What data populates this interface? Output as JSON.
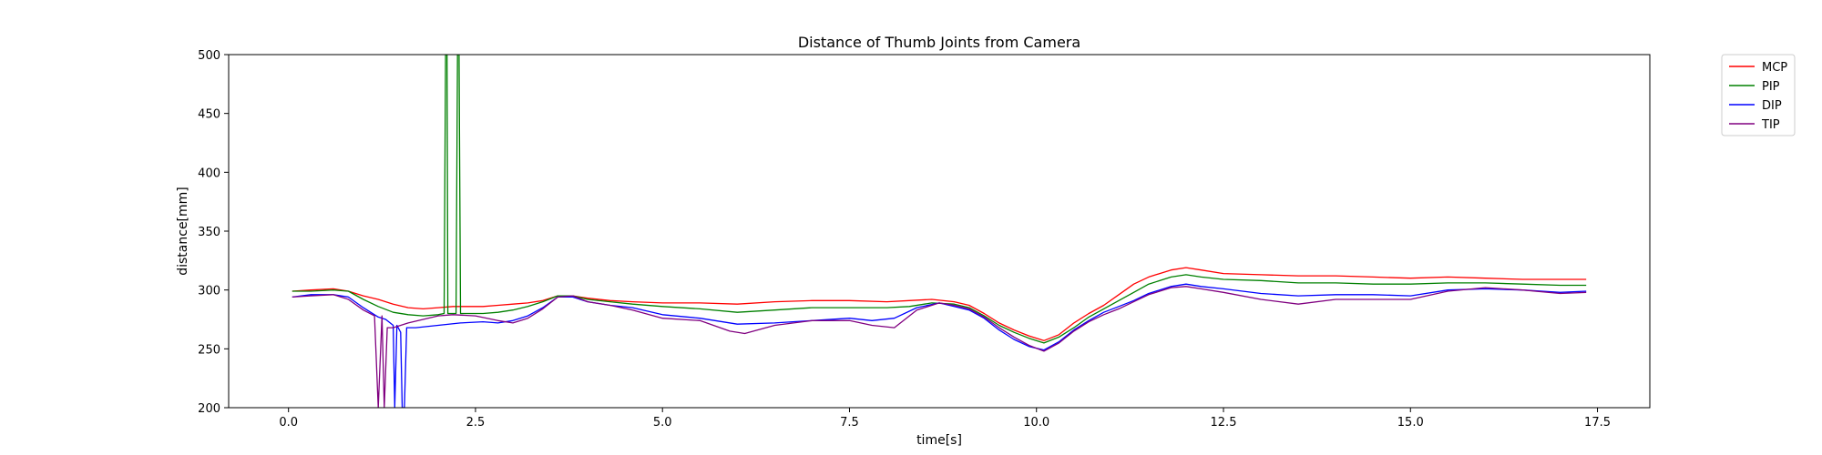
{
  "chart_data": {
    "type": "line",
    "title": "Distance of Thumb Joints from Camera",
    "xlabel": "time[s]",
    "ylabel": "distance[mm]",
    "xlim": [
      -0.8,
      18.2
    ],
    "ylim": [
      200,
      500
    ],
    "xticks": [
      0.0,
      2.5,
      5.0,
      7.5,
      10.0,
      12.5,
      15.0,
      17.5
    ],
    "xtick_labels": [
      "0.0",
      "2.5",
      "5.0",
      "7.5",
      "10.0",
      "12.5",
      "15.0",
      "17.5"
    ],
    "yticks": [
      200,
      250,
      300,
      350,
      400,
      450,
      500
    ],
    "ytick_labels": [
      "200",
      "250",
      "300",
      "350",
      "400",
      "450",
      "500"
    ],
    "grid": false,
    "legend_position": "outside-top-right",
    "series": [
      {
        "name": "MCP",
        "color": "#ff0000",
        "points": [
          [
            0.05,
            299
          ],
          [
            0.3,
            300
          ],
          [
            0.6,
            301
          ],
          [
            0.8,
            299
          ],
          [
            1.0,
            295
          ],
          [
            1.2,
            292
          ],
          [
            1.4,
            288
          ],
          [
            1.6,
            285
          ],
          [
            1.8,
            284
          ],
          [
            2.0,
            285
          ],
          [
            2.2,
            286
          ],
          [
            2.4,
            286
          ],
          [
            2.6,
            286
          ],
          [
            2.8,
            287
          ],
          [
            3.0,
            288
          ],
          [
            3.2,
            289
          ],
          [
            3.4,
            291
          ],
          [
            3.6,
            295
          ],
          [
            3.8,
            295
          ],
          [
            4.0,
            293
          ],
          [
            4.3,
            291
          ],
          [
            4.6,
            290
          ],
          [
            5.0,
            289
          ],
          [
            5.5,
            289
          ],
          [
            6.0,
            288
          ],
          [
            6.5,
            290
          ],
          [
            7.0,
            291
          ],
          [
            7.5,
            291
          ],
          [
            8.0,
            290
          ],
          [
            8.3,
            291
          ],
          [
            8.6,
            292
          ],
          [
            8.9,
            290
          ],
          [
            9.1,
            287
          ],
          [
            9.3,
            280
          ],
          [
            9.5,
            272
          ],
          [
            9.7,
            266
          ],
          [
            9.9,
            261
          ],
          [
            10.1,
            257
          ],
          [
            10.3,
            262
          ],
          [
            10.5,
            272
          ],
          [
            10.7,
            280
          ],
          [
            10.9,
            287
          ],
          [
            11.1,
            296
          ],
          [
            11.3,
            305
          ],
          [
            11.5,
            311
          ],
          [
            11.8,
            317
          ],
          [
            12.0,
            319
          ],
          [
            12.2,
            317
          ],
          [
            12.5,
            314
          ],
          [
            13.0,
            313
          ],
          [
            13.5,
            312
          ],
          [
            14.0,
            312
          ],
          [
            14.5,
            311
          ],
          [
            15.0,
            310
          ],
          [
            15.5,
            311
          ],
          [
            16.0,
            310
          ],
          [
            16.5,
            309
          ],
          [
            17.0,
            309
          ],
          [
            17.35,
            309
          ]
        ]
      },
      {
        "name": "PIP",
        "color": "#008000",
        "points": [
          [
            0.05,
            299
          ],
          [
            0.3,
            299
          ],
          [
            0.6,
            300
          ],
          [
            0.8,
            299
          ],
          [
            1.0,
            292
          ],
          [
            1.2,
            286
          ],
          [
            1.4,
            281
          ],
          [
            1.6,
            279
          ],
          [
            1.8,
            278
          ],
          [
            2.0,
            279
          ],
          [
            2.08,
            280
          ],
          [
            2.1,
            500
          ],
          [
            2.12,
            500
          ],
          [
            2.13,
            280
          ],
          [
            2.24,
            280
          ],
          [
            2.26,
            500
          ],
          [
            2.28,
            500
          ],
          [
            2.3,
            280
          ],
          [
            2.6,
            280
          ],
          [
            2.8,
            281
          ],
          [
            3.0,
            283
          ],
          [
            3.2,
            286
          ],
          [
            3.4,
            290
          ],
          [
            3.6,
            295
          ],
          [
            3.8,
            295
          ],
          [
            4.0,
            292
          ],
          [
            4.3,
            290
          ],
          [
            4.6,
            288
          ],
          [
            5.0,
            286
          ],
          [
            5.5,
            284
          ],
          [
            6.0,
            281
          ],
          [
            6.5,
            283
          ],
          [
            7.0,
            285
          ],
          [
            7.5,
            285
          ],
          [
            8.0,
            285
          ],
          [
            8.3,
            286
          ],
          [
            8.6,
            289
          ],
          [
            8.9,
            288
          ],
          [
            9.1,
            285
          ],
          [
            9.3,
            278
          ],
          [
            9.5,
            270
          ],
          [
            9.7,
            264
          ],
          [
            9.9,
            259
          ],
          [
            10.1,
            255
          ],
          [
            10.3,
            260
          ],
          [
            10.5,
            268
          ],
          [
            10.7,
            277
          ],
          [
            10.9,
            284
          ],
          [
            11.1,
            291
          ],
          [
            11.3,
            298
          ],
          [
            11.5,
            305
          ],
          [
            11.8,
            311
          ],
          [
            12.0,
            313
          ],
          [
            12.2,
            311
          ],
          [
            12.5,
            309
          ],
          [
            13.0,
            308
          ],
          [
            13.5,
            306
          ],
          [
            14.0,
            306
          ],
          [
            14.5,
            305
          ],
          [
            15.0,
            305
          ],
          [
            15.5,
            306
          ],
          [
            16.0,
            306
          ],
          [
            16.5,
            305
          ],
          [
            17.0,
            304
          ],
          [
            17.35,
            304
          ]
        ]
      },
      {
        "name": "DIP",
        "color": "#0000ff",
        "points": [
          [
            0.05,
            294
          ],
          [
            0.3,
            296
          ],
          [
            0.6,
            296
          ],
          [
            0.8,
            294
          ],
          [
            1.0,
            285
          ],
          [
            1.2,
            277
          ],
          [
            1.3,
            275
          ],
          [
            1.4,
            270
          ],
          [
            1.42,
            200
          ],
          [
            1.45,
            270
          ],
          [
            1.5,
            264
          ],
          [
            1.52,
            200
          ],
          [
            1.55,
            200
          ],
          [
            1.58,
            268
          ],
          [
            1.7,
            268
          ],
          [
            2.0,
            270
          ],
          [
            2.3,
            272
          ],
          [
            2.6,
            273
          ],
          [
            2.8,
            272
          ],
          [
            3.0,
            274
          ],
          [
            3.2,
            278
          ],
          [
            3.4,
            285
          ],
          [
            3.6,
            294
          ],
          [
            3.8,
            294
          ],
          [
            4.0,
            290
          ],
          [
            4.3,
            287
          ],
          [
            4.6,
            285
          ],
          [
            5.0,
            279
          ],
          [
            5.5,
            276
          ],
          [
            6.0,
            271
          ],
          [
            6.5,
            272
          ],
          [
            7.0,
            274
          ],
          [
            7.5,
            276
          ],
          [
            7.8,
            274
          ],
          [
            8.1,
            276
          ],
          [
            8.4,
            285
          ],
          [
            8.7,
            289
          ],
          [
            8.9,
            286
          ],
          [
            9.1,
            283
          ],
          [
            9.3,
            276
          ],
          [
            9.5,
            266
          ],
          [
            9.7,
            258
          ],
          [
            9.9,
            252
          ],
          [
            10.1,
            249
          ],
          [
            10.3,
            256
          ],
          [
            10.5,
            266
          ],
          [
            10.7,
            274
          ],
          [
            10.9,
            281
          ],
          [
            11.1,
            286
          ],
          [
            11.3,
            291
          ],
          [
            11.5,
            297
          ],
          [
            11.8,
            303
          ],
          [
            12.0,
            305
          ],
          [
            12.2,
            303
          ],
          [
            12.5,
            301
          ],
          [
            13.0,
            297
          ],
          [
            13.5,
            295
          ],
          [
            14.0,
            296
          ],
          [
            14.5,
            296
          ],
          [
            15.0,
            295
          ],
          [
            15.5,
            300
          ],
          [
            16.0,
            301
          ],
          [
            16.5,
            300
          ],
          [
            17.0,
            298
          ],
          [
            17.35,
            299
          ]
        ]
      },
      {
        "name": "TIP",
        "color": "#800080",
        "points": [
          [
            0.05,
            294
          ],
          [
            0.3,
            295
          ],
          [
            0.6,
            296
          ],
          [
            0.8,
            292
          ],
          [
            1.0,
            283
          ],
          [
            1.15,
            278
          ],
          [
            1.2,
            200
          ],
          [
            1.25,
            278
          ],
          [
            1.28,
            200
          ],
          [
            1.32,
            268
          ],
          [
            1.4,
            268
          ],
          [
            1.6,
            272
          ],
          [
            1.8,
            275
          ],
          [
            2.0,
            278
          ],
          [
            2.2,
            279
          ],
          [
            2.5,
            278
          ],
          [
            2.8,
            274
          ],
          [
            3.0,
            272
          ],
          [
            3.2,
            276
          ],
          [
            3.4,
            284
          ],
          [
            3.6,
            294
          ],
          [
            3.8,
            295
          ],
          [
            4.0,
            290
          ],
          [
            4.3,
            287
          ],
          [
            4.6,
            283
          ],
          [
            5.0,
            276
          ],
          [
            5.5,
            274
          ],
          [
            5.9,
            265
          ],
          [
            6.1,
            263
          ],
          [
            6.5,
            270
          ],
          [
            7.0,
            274
          ],
          [
            7.5,
            274
          ],
          [
            7.8,
            270
          ],
          [
            8.1,
            268
          ],
          [
            8.4,
            283
          ],
          [
            8.7,
            289
          ],
          [
            8.9,
            287
          ],
          [
            9.1,
            284
          ],
          [
            9.3,
            277
          ],
          [
            9.5,
            268
          ],
          [
            9.7,
            260
          ],
          [
            9.9,
            253
          ],
          [
            10.1,
            248
          ],
          [
            10.3,
            255
          ],
          [
            10.5,
            265
          ],
          [
            10.7,
            273
          ],
          [
            10.9,
            279
          ],
          [
            11.1,
            284
          ],
          [
            11.3,
            290
          ],
          [
            11.5,
            296
          ],
          [
            11.8,
            302
          ],
          [
            12.0,
            303
          ],
          [
            12.2,
            301
          ],
          [
            12.5,
            298
          ],
          [
            13.0,
            292
          ],
          [
            13.5,
            288
          ],
          [
            14.0,
            292
          ],
          [
            14.5,
            292
          ],
          [
            15.0,
            292
          ],
          [
            15.5,
            299
          ],
          [
            16.0,
            302
          ],
          [
            16.5,
            300
          ],
          [
            17.0,
            297
          ],
          [
            17.35,
            298
          ]
        ]
      }
    ]
  }
}
